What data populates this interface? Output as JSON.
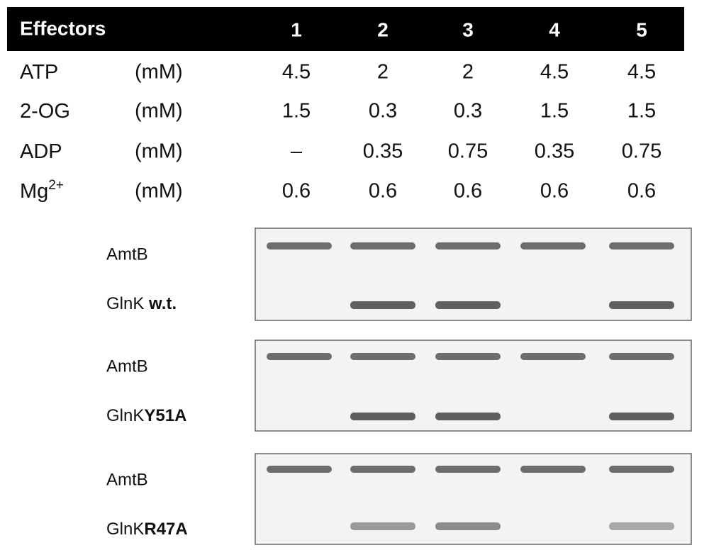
{
  "table": {
    "header": {
      "title": "Effectors",
      "lanes": [
        "1",
        "2",
        "3",
        "4",
        "5"
      ]
    },
    "rows": [
      {
        "label": "ATP",
        "unit": "(mM)",
        "values": [
          "4.5",
          "2",
          "2",
          "4.5",
          "4.5"
        ]
      },
      {
        "label": "2-OG",
        "unit": "(mM)",
        "values": [
          "1.5",
          "0.3",
          "0.3",
          "1.5",
          "1.5"
        ]
      },
      {
        "label": "ADP",
        "unit": "(mM)",
        "values": [
          "–",
          "0.35",
          "0.75",
          "0.35",
          "0.75"
        ]
      },
      {
        "label": "Mg",
        "label_sup": "2+",
        "unit": "(mM)",
        "values": [
          "0.6",
          "0.6",
          "0.6",
          "0.6",
          "0.6"
        ]
      }
    ]
  },
  "gels": [
    {
      "top_label": "AmtB",
      "bottom_label": "GlnK",
      "bottom_label_bold": " w.t."
    },
    {
      "top_label": "AmtB",
      "bottom_label": "GlnK",
      "bottom_label_bold": "Y51A"
    },
    {
      "top_label": "AmtB",
      "bottom_label": "GlnK",
      "bottom_label_bold": "R47A"
    }
  ]
}
